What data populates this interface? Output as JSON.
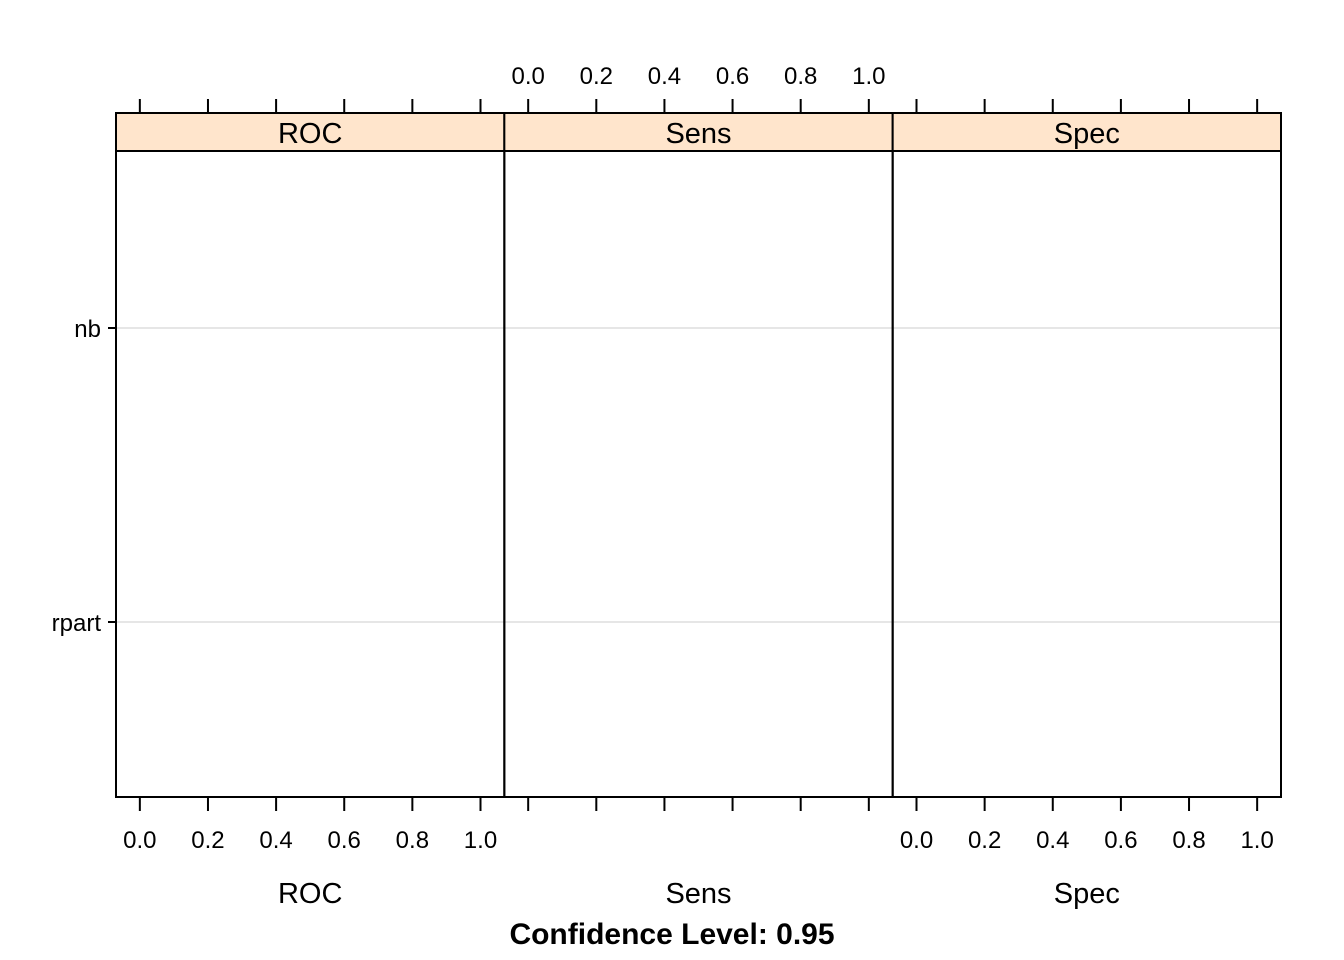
{
  "chart_data": {
    "type": "dotplot",
    "panels": [
      {
        "name": "ROC",
        "xlabel": "ROC",
        "xlim": [
          -0.07,
          1.07
        ],
        "ticks": [
          "0.0",
          "0.2",
          "0.4",
          "0.6",
          "0.8",
          "1.0"
        ],
        "tick_labels_side": "bottom"
      },
      {
        "name": "Sens",
        "xlabel": "Sens",
        "xlim": [
          -0.07,
          1.07
        ],
        "ticks": [
          "0.0",
          "0.2",
          "0.4",
          "0.6",
          "0.8",
          "1.0"
        ],
        "tick_labels_side": "top"
      },
      {
        "name": "Spec",
        "xlabel": "Spec",
        "xlim": [
          -0.07,
          1.07
        ],
        "ticks": [
          "0.0",
          "0.2",
          "0.4",
          "0.6",
          "0.8",
          "1.0"
        ],
        "tick_labels_side": "bottom"
      }
    ],
    "models": [
      "nb",
      "rpart"
    ],
    "series": [],
    "caption": "Confidence Level: 0.95",
    "grid": true,
    "colors": {
      "strip_background": "#ffe5cc",
      "grid_line": "#e6e6e6",
      "frame": "#000000"
    }
  }
}
